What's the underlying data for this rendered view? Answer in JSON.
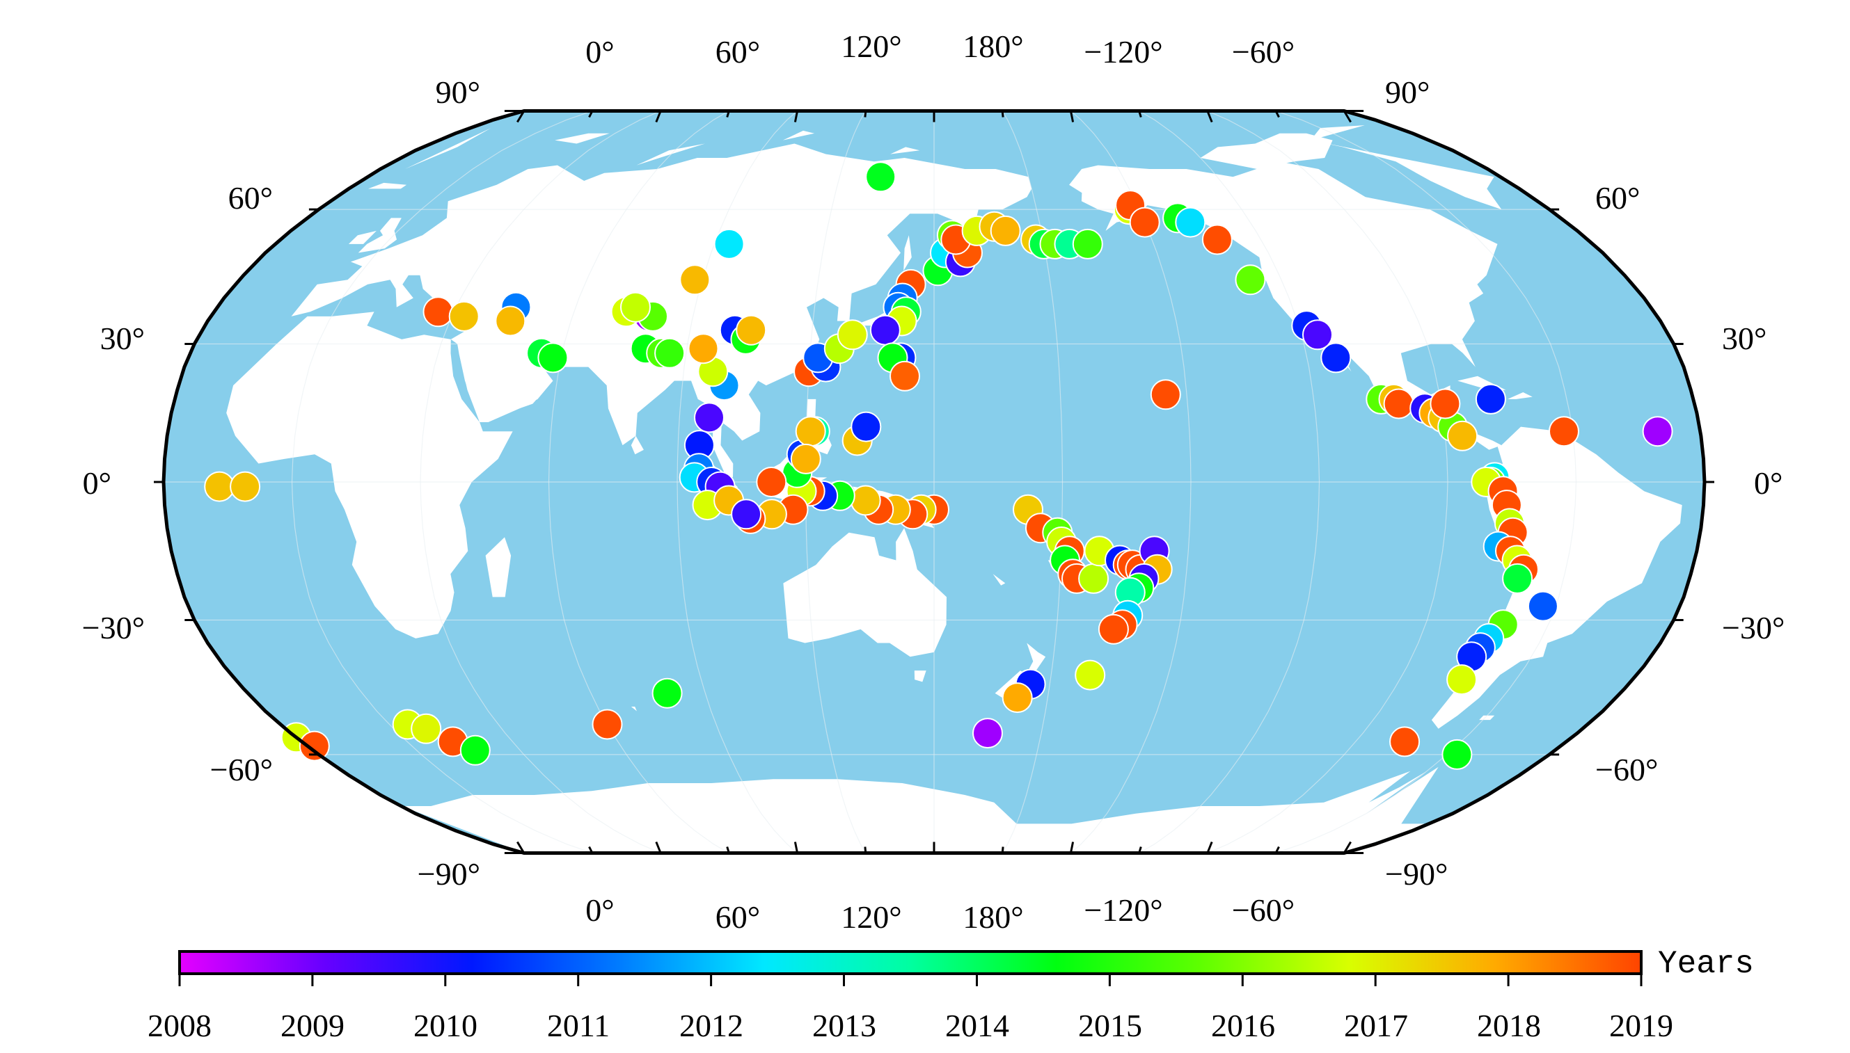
{
  "map": {
    "projection": "Robinson",
    "central_meridian": 150,
    "ocean_color": "#87ceeb",
    "land_color": "#ffffff",
    "border_color": "#000000",
    "top_lon_labels": [
      "0°",
      "60°",
      "120°",
      "180°",
      "−120°",
      "−60°"
    ],
    "bottom_lon_labels": [
      "0°",
      "60°",
      "120°",
      "180°",
      "−120°",
      "−60°"
    ],
    "left_lat_labels": [
      "90°",
      "60°",
      "30°",
      "0°",
      "−30°",
      "−60°",
      "−90°"
    ],
    "right_lat_labels": [
      "90°",
      "60°",
      "30°",
      "0°",
      "−30°",
      "−60°",
      "−90°"
    ]
  },
  "colorbar": {
    "title": "Years",
    "min": 2008,
    "max": 2019,
    "tick_labels": [
      "2008",
      "2009",
      "2010",
      "2011",
      "2012",
      "2013",
      "2014",
      "2015",
      "2016",
      "2017",
      "2018",
      "2019"
    ],
    "colors": [
      "#e400ff",
      "#6600ff",
      "#0018ff",
      "#007bff",
      "#00e8ff",
      "#00ffa0",
      "#00ff10",
      "#60ff00",
      "#d8ff00",
      "#ffaa00",
      "#ff4400"
    ]
  },
  "events": [
    {
      "lon": 144,
      "lat": 43,
      "year": 2018.9
    },
    {
      "lon": 142,
      "lat": 40,
      "year": 2011.2
    },
    {
      "lon": 141,
      "lat": 38,
      "year": 2011.2
    },
    {
      "lon": 143,
      "lat": 37,
      "year": 2014.3
    },
    {
      "lon": 142,
      "lat": 35,
      "year": 2016.8
    },
    {
      "lon": 138,
      "lat": 33,
      "year": 2009.6
    },
    {
      "lon": 142,
      "lat": 27,
      "year": 2010.4
    },
    {
      "lon": 140,
      "lat": 27,
      "year": 2014.6
    },
    {
      "lon": 143,
      "lat": 23,
      "year": 2018.7
    },
    {
      "lon": 120,
      "lat": 24,
      "year": 2018.9
    },
    {
      "lon": 124,
      "lat": 25,
      "year": 2010.5
    },
    {
      "lon": 122,
      "lat": 27,
      "year": 2010.9
    },
    {
      "lon": 127,
      "lat": 29,
      "year": 2016.5
    },
    {
      "lon": 130,
      "lat": 32,
      "year": 2016.9
    },
    {
      "lon": 151,
      "lat": 46,
      "year": 2014.5
    },
    {
      "lon": 153,
      "lat": 50,
      "year": 2012.4
    },
    {
      "lon": 157,
      "lat": 48,
      "year": 2009.6
    },
    {
      "lon": 159,
      "lat": 50,
      "year": 2018.8
    },
    {
      "lon": 155,
      "lat": 54,
      "year": 2015.8
    },
    {
      "lon": 156,
      "lat": 53,
      "year": 2018.9
    },
    {
      "lon": 162,
      "lat": 55,
      "year": 2016.9
    },
    {
      "lon": 167,
      "lat": 56,
      "year": 2017.6
    },
    {
      "lon": 170,
      "lat": 55,
      "year": 2017.8
    },
    {
      "lon": 178,
      "lat": 53,
      "year": 2017.5
    },
    {
      "lon": -180,
      "lat": 52,
      "year": 2014.2
    },
    {
      "lon": -177,
      "lat": 52,
      "year": 2015.8
    },
    {
      "lon": -173,
      "lat": 52,
      "year": 2013.6
    },
    {
      "lon": -168,
      "lat": 52,
      "year": 2015.2
    },
    {
      "lon": 133,
      "lat": 68,
      "year": 2014.5
    },
    {
      "lon": -153,
      "lat": 60,
      "year": 2016.8
    },
    {
      "lon": -152,
      "lat": 61,
      "year": 2018.9
    },
    {
      "lon": -150,
      "lat": 57,
      "year": 2018.9
    },
    {
      "lon": -140,
      "lat": 58,
      "year": 2014.7
    },
    {
      "lon": -137,
      "lat": 57,
      "year": 2012.3
    },
    {
      "lon": -132,
      "lat": 53,
      "year": 2018.9
    },
    {
      "lon": -128,
      "lat": 44,
      "year": 2015.7
    },
    {
      "lon": -118,
      "lat": 34,
      "year": 2010.3
    },
    {
      "lon": -116,
      "lat": 32,
      "year": 2009.4
    },
    {
      "lon": -113,
      "lat": 27,
      "year": 2010.3
    },
    {
      "lon": -155,
      "lat": 19,
      "year": 2018.9
    },
    {
      "lon": -104,
      "lat": 18,
      "year": 2015.6
    },
    {
      "lon": -101,
      "lat": 18,
      "year": 2017.6
    },
    {
      "lon": -100,
      "lat": 17,
      "year": 2018.9
    },
    {
      "lon": -94,
      "lat": 16,
      "year": 2009.8
    },
    {
      "lon": -92,
      "lat": 15,
      "year": 2017.9
    },
    {
      "lon": -90,
      "lat": 14,
      "year": 2017.6
    },
    {
      "lon": -88,
      "lat": 12,
      "year": 2015.7
    },
    {
      "lon": -86,
      "lat": 10,
      "year": 2017.7
    },
    {
      "lon": -89,
      "lat": 17,
      "year": 2018.9
    },
    {
      "lon": -78,
      "lat": 18,
      "year": 2010.3
    },
    {
      "lon": -62,
      "lat": 11,
      "year": 2018.9
    },
    {
      "lon": -40,
      "lat": 11,
      "year": 2008.6
    },
    {
      "lon": -79,
      "lat": 1,
      "year": 2012.5
    },
    {
      "lon": -80,
      "lat": 0,
      "year": 2015.8
    },
    {
      "lon": -81,
      "lat": 0,
      "year": 2016.8
    },
    {
      "lon": -77,
      "lat": -2,
      "year": 2018.9
    },
    {
      "lon": -76,
      "lat": -5,
      "year": 2018.9
    },
    {
      "lon": -75,
      "lat": -9,
      "year": 2016.6
    },
    {
      "lon": -74,
      "lat": -11,
      "year": 2018.9
    },
    {
      "lon": -77,
      "lat": -14,
      "year": 2011.8
    },
    {
      "lon": -74,
      "lat": -15,
      "year": 2018.9
    },
    {
      "lon": -72,
      "lat": -17,
      "year": 2016.8
    },
    {
      "lon": -70,
      "lat": -19,
      "year": 2018.9
    },
    {
      "lon": -71,
      "lat": -21,
      "year": 2014.3
    },
    {
      "lon": -63,
      "lat": -27,
      "year": 2010.9
    },
    {
      "lon": -71,
      "lat": -31,
      "year": 2015.6
    },
    {
      "lon": -73,
      "lat": -34,
      "year": 2012.2
    },
    {
      "lon": -74,
      "lat": -36,
      "year": 2010.8
    },
    {
      "lon": -75,
      "lat": -38,
      "year": 2010.3
    },
    {
      "lon": -74,
      "lat": -43,
      "year": 2016.8
    },
    {
      "lon": -76,
      "lat": -57,
      "year": 2018.9
    },
    {
      "lon": -57,
      "lat": -60,
      "year": 2014.6
    },
    {
      "lon": -30,
      "lat": -56,
      "year": 2016.8
    },
    {
      "lon": -28,
      "lat": -58,
      "year": 2018.9
    },
    {
      "lon": 172,
      "lat": -6,
      "year": 2017.5
    },
    {
      "lon": 175,
      "lat": -10,
      "year": 2018.9
    },
    {
      "lon": 179,
      "lat": -11,
      "year": 2015.6
    },
    {
      "lon": 180,
      "lat": -13,
      "year": 2016.7
    },
    {
      "lon": -178,
      "lat": -15,
      "year": 2018.9
    },
    {
      "lon": -179,
      "lat": -17,
      "year": 2014.6
    },
    {
      "lon": -177,
      "lat": -20,
      "year": 2018.9
    },
    {
      "lon": -176,
      "lat": -21,
      "year": 2018.9
    },
    {
      "lon": -172,
      "lat": -21,
      "year": 2016.5
    },
    {
      "lon": -171,
      "lat": -15,
      "year": 2016.8
    },
    {
      "lon": -166,
      "lat": -17,
      "year": 2010.2
    },
    {
      "lon": -164,
      "lat": -18,
      "year": 2018.9
    },
    {
      "lon": -163,
      "lat": -18,
      "year": 2018.9
    },
    {
      "lon": -161,
      "lat": -19,
      "year": 2018.9
    },
    {
      "lon": -158,
      "lat": -15,
      "year": 2009.4
    },
    {
      "lon": -157,
      "lat": -19,
      "year": 2017.7
    },
    {
      "lon": -160,
      "lat": -21,
      "year": 2009.6
    },
    {
      "lon": -161,
      "lat": -23,
      "year": 2014.7
    },
    {
      "lon": -163,
      "lat": -24,
      "year": 2013.4
    },
    {
      "lon": -163,
      "lat": -29,
      "year": 2012.2
    },
    {
      "lon": -164,
      "lat": -31,
      "year": 2018.9
    },
    {
      "lon": -166,
      "lat": -32,
      "year": 2018.9
    },
    {
      "lon": -170,
      "lat": -42,
      "year": 2016.8
    },
    {
      "lon": 175,
      "lat": -44,
      "year": 2010.2
    },
    {
      "lon": 172,
      "lat": -47,
      "year": 2017.9
    },
    {
      "lon": 165,
      "lat": -55,
      "year": 2008.6
    },
    {
      "lon": 150,
      "lat": -6,
      "year": 2018.9
    },
    {
      "lon": 147,
      "lat": -6,
      "year": 2017.4
    },
    {
      "lon": 145,
      "lat": -7,
      "year": 2018.9
    },
    {
      "lon": 141,
      "lat": -6,
      "year": 2017.7
    },
    {
      "lon": 137,
      "lat": -6,
      "year": 2018.9
    },
    {
      "lon": 134,
      "lat": -4,
      "year": 2017.6
    },
    {
      "lon": 128,
      "lat": -3,
      "year": 2014.7
    },
    {
      "lon": 124,
      "lat": -3,
      "year": 2010.3
    },
    {
      "lon": 121,
      "lat": -2,
      "year": 2018.9
    },
    {
      "lon": 119,
      "lat": -2,
      "year": 2016.8
    },
    {
      "lon": 117,
      "lat": -6,
      "year": 2018.9
    },
    {
      "lon": 112,
      "lat": -7,
      "year": 2017.7
    },
    {
      "lon": 107,
      "lat": -8,
      "year": 2018.9
    },
    {
      "lon": 118,
      "lat": 2,
      "year": 2014.5
    },
    {
      "lon": 119,
      "lat": 6,
      "year": 2010.5
    },
    {
      "lon": 122,
      "lat": 11,
      "year": 2013.4
    },
    {
      "lon": 121,
      "lat": 11,
      "year": 2017.7
    },
    {
      "lon": 120,
      "lat": 5,
      "year": 2017.8
    },
    {
      "lon": 112,
      "lat": 0,
      "year": 2018.9
    },
    {
      "lon": 132,
      "lat": 9,
      "year": 2017.6
    },
    {
      "lon": 134,
      "lat": 12,
      "year": 2010.3
    },
    {
      "lon": 97,
      "lat": 14,
      "year": 2009.4
    },
    {
      "lon": 95,
      "lat": 8,
      "year": 2010.2
    },
    {
      "lon": 95,
      "lat": 3,
      "year": 2011.3
    },
    {
      "lon": 94,
      "lat": 1,
      "year": 2012.3
    },
    {
      "lon": 98,
      "lat": 0,
      "year": 2010.4
    },
    {
      "lon": 100,
      "lat": -1,
      "year": 2009.4
    },
    {
      "lon": 97,
      "lat": -5,
      "year": 2016.8
    },
    {
      "lon": 102,
      "lat": -4,
      "year": 2017.7
    },
    {
      "lon": 106,
      "lat": -7,
      "year": 2009.6
    },
    {
      "lon": 100,
      "lat": 21,
      "year": 2011.6
    },
    {
      "lon": 97,
      "lat": 24,
      "year": 2016.7
    },
    {
      "lon": 94,
      "lat": 29,
      "year": 2017.9
    },
    {
      "lon": 101,
      "lat": 33,
      "year": 2010.3
    },
    {
      "lon": 104,
      "lat": 31,
      "year": 2014.7
    },
    {
      "lon": 105,
      "lat": 33,
      "year": 2017.7
    },
    {
      "lon": 80,
      "lat": 29,
      "year": 2014.6
    },
    {
      "lon": 84,
      "lat": 28,
      "year": 2015.5
    },
    {
      "lon": 86,
      "lat": 28,
      "year": 2015.2
    },
    {
      "lon": 79,
      "lat": 36,
      "year": 2008.6
    },
    {
      "lon": 80,
      "lat": 36,
      "year": 2015.6
    },
    {
      "lon": 73,
      "lat": 37,
      "year": 2016.8
    },
    {
      "lon": 75,
      "lat": 38,
      "year": 2016.6
    },
    {
      "lon": 88,
      "lat": 44,
      "year": 2017.7
    },
    {
      "lon": 94,
      "lat": 52,
      "year": 2012.4
    },
    {
      "lon": 55,
      "lat": 28,
      "year": 2014.3
    },
    {
      "lon": 58,
      "lat": 27,
      "year": 2014.6
    },
    {
      "lon": 45,
      "lat": 38,
      "year": 2011.3
    },
    {
      "lon": 45,
      "lat": 35,
      "year": 2017.7
    },
    {
      "lon": 26,
      "lat": 37,
      "year": 2018.9
    },
    {
      "lon": 33,
      "lat": 36,
      "year": 2017.6
    },
    {
      "lon": -17,
      "lat": -1,
      "year": 2017.6
    },
    {
      "lon": -11,
      "lat": -1,
      "year": 2017.6
    },
    {
      "lon": 80,
      "lat": -46,
      "year": 2014.6
    },
    {
      "lon": 60,
      "lat": -53,
      "year": 2018.9
    },
    {
      "lon": 5,
      "lat": -53,
      "year": 2016.8
    },
    {
      "lon": 9,
      "lat": -54,
      "year": 2016.9
    },
    {
      "lon": 13,
      "lat": -57,
      "year": 2018.9
    },
    {
      "lon": 17,
      "lat": -59,
      "year": 2014.6
    }
  ]
}
